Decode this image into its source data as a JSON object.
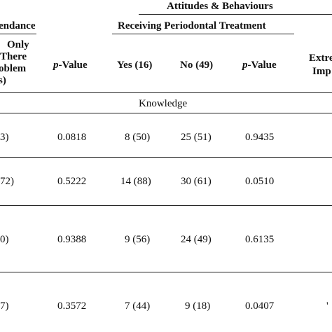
{
  "header": {
    "group_title": "Attitudes & Behaviours",
    "left_group_fragment": "endance",
    "treatment_group": "Receiving Periodontal Treatment",
    "col_left_lines": [
      "Only",
      "There",
      "oblem",
      "s)"
    ],
    "col_pvalue_left": "-Value",
    "col_pvalue_left_p": "p",
    "col_yes": "Yes (16)",
    "col_no": "No (49)",
    "col_pvalue_right": "-Value",
    "col_pvalue_right_p": "p",
    "col_extreme_lines": [
      "Extre",
      "Imp"
    ]
  },
  "section_label": "Knowledge",
  "rows": [
    {
      "left": "3)",
      "p1": "0.0818",
      "yes": "8 (50)",
      "no": "25 (51)",
      "p2": "0.9435",
      "right": ""
    },
    {
      "left": "72)",
      "p1": "0.5222",
      "yes": "14 (88)",
      "no": "30 (61)",
      "p2": "0.0510",
      "right": ""
    },
    {
      "left": "0)",
      "p1": "0.9388",
      "yes": "9 (56)",
      "no": "24 (49)",
      "p2": "0.6135",
      "right": ""
    },
    {
      "left": "7)",
      "p1": "0.3572",
      "yes": "7 (44)",
      "no": "9 (18)",
      "p2": "0.0407",
      "right": "'"
    }
  ]
}
